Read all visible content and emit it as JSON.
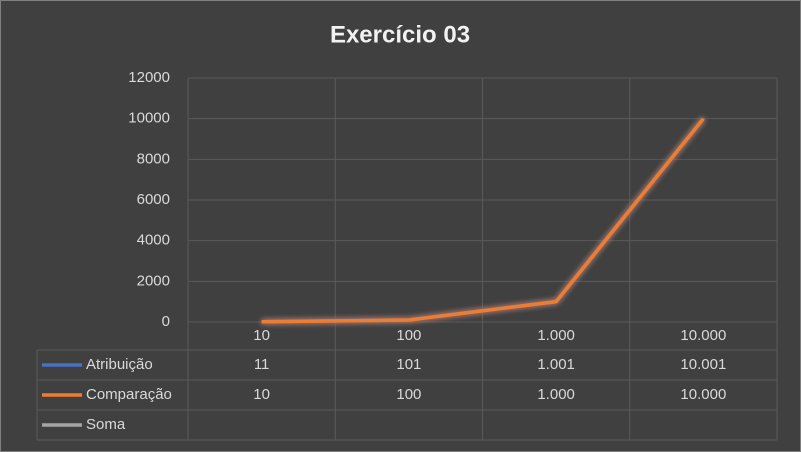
{
  "chart_data": {
    "type": "line",
    "title": "Exercício 03",
    "categories": [
      "10",
      "100",
      "1.000",
      "10.000"
    ],
    "series": [
      {
        "name": "Atribuição",
        "color": "#4472c4",
        "values": [
          11,
          101,
          1001,
          10001
        ],
        "value_labels": [
          "11",
          "101",
          "1.001",
          "10.001"
        ]
      },
      {
        "name": "Comparação",
        "color": "#ed7d31",
        "values": [
          10,
          100,
          1000,
          10000
        ],
        "value_labels": [
          "10",
          "100",
          "1.000",
          "10.000"
        ]
      },
      {
        "name": "Soma",
        "color": "#a5a5a5",
        "values": [
          null,
          null,
          null,
          null
        ]
      }
    ],
    "ylim": [
      0,
      12000
    ],
    "yticks": [
      0,
      2000,
      4000,
      6000,
      8000,
      10000,
      12000
    ],
    "grid": true
  }
}
